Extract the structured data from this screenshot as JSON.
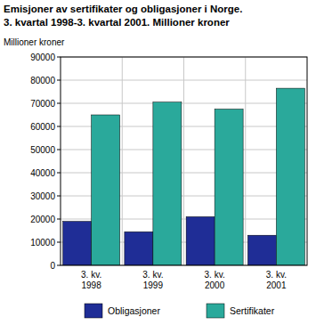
{
  "chart_data": {
    "type": "bar",
    "title": "Emisjoner av sertifikater og obligasjoner i Norge.",
    "subtitle": "3. kvartal 1998-3. kvartal 2001. Millioner kroner",
    "y_label": "Millioner kroner",
    "categories": [
      "3. kv. 1998",
      "3. kv. 1999",
      "3. kv. 2000",
      "3. kv. 2001"
    ],
    "series": [
      {
        "name": "Obligasjoner",
        "color": "#1f2d96",
        "values": [
          19000,
          14500,
          21000,
          13000
        ]
      },
      {
        "name": "Sertifikater",
        "color": "#2aa99b",
        "values": [
          65000,
          70500,
          67500,
          76500
        ]
      }
    ],
    "ylim": [
      0,
      90000
    ],
    "yticks": [
      0,
      10000,
      20000,
      30000,
      40000,
      50000,
      60000,
      70000,
      80000,
      90000
    ],
    "grid": true,
    "legend": "bottom"
  }
}
